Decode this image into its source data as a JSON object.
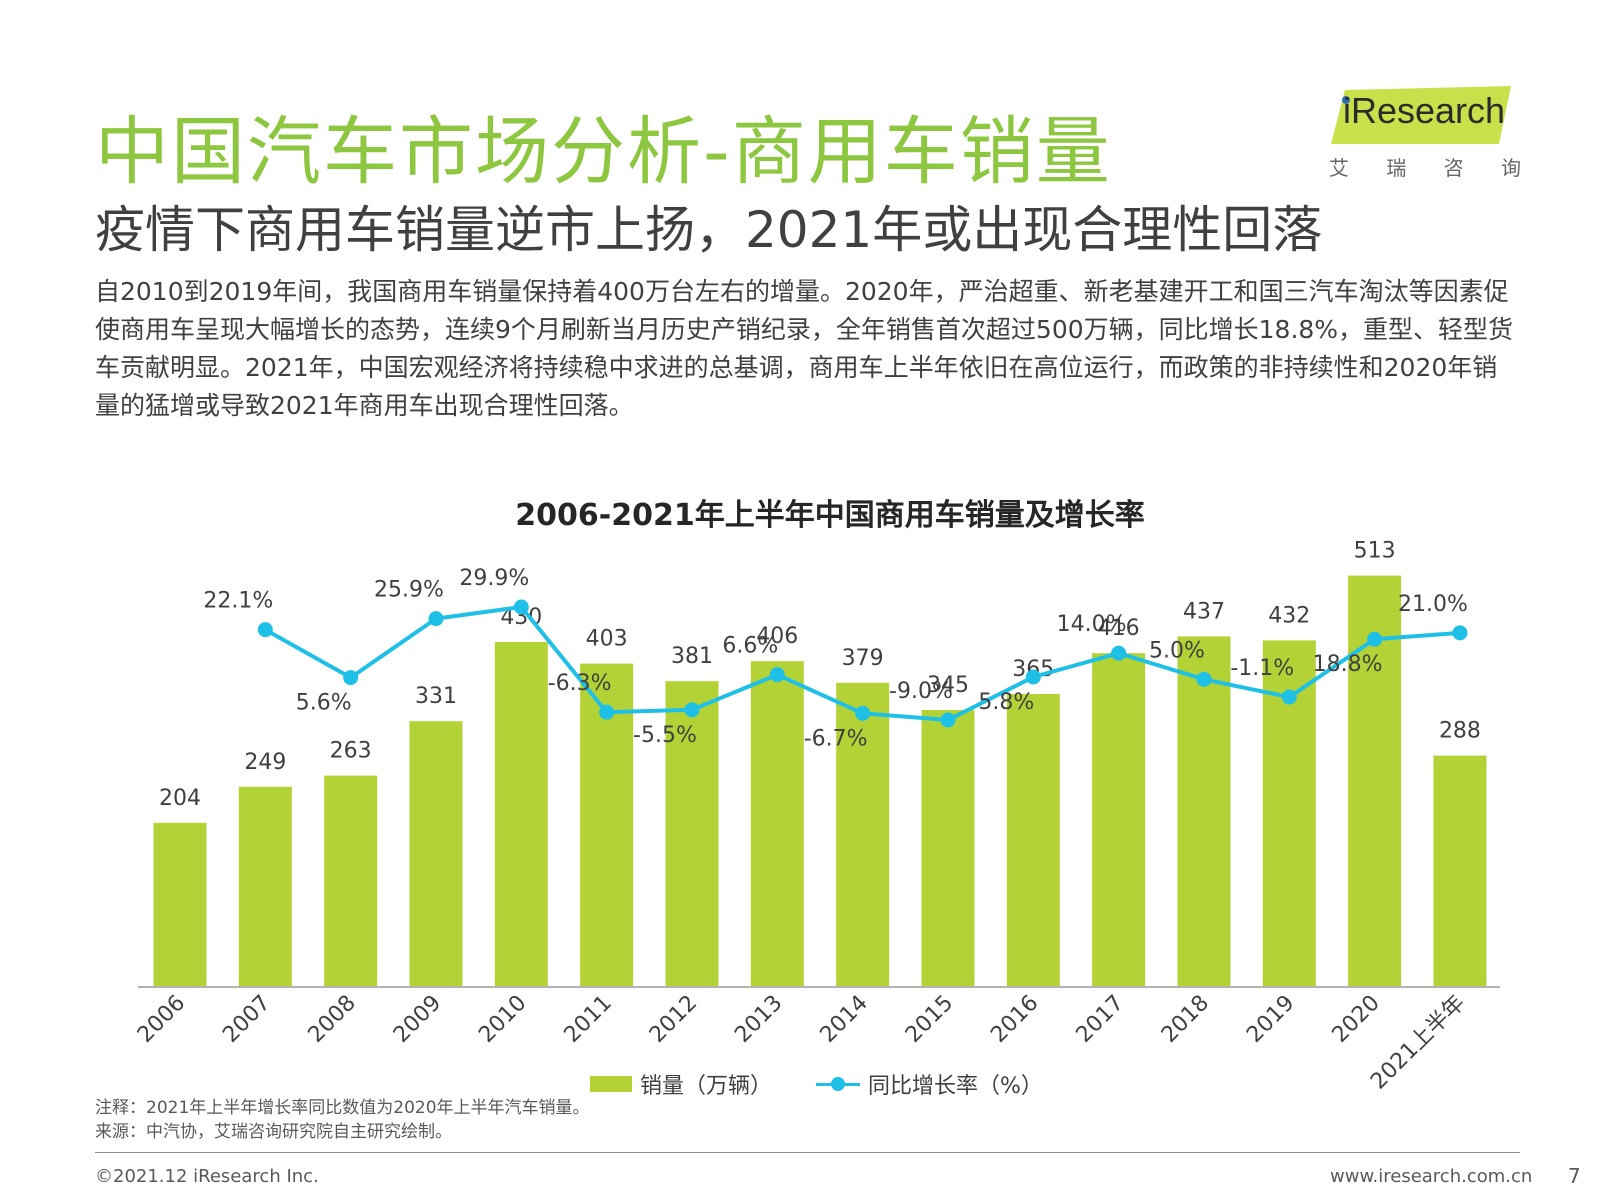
{
  "header": {
    "title": "中国汽车市场分析-商用车销量",
    "subtitle": "疫情下商用车销量逆市上扬，2021年或出现合理性回落",
    "intro": "自2010到2019年间，我国商用车销量保持着400万台左右的增量。2020年，严治超重、新老基建开工和国三汽车淘汰等因素促使商用车呈现大幅增长的态势，连续9个月刷新当月历史产销纪录，全年销售首次超过500万辆，同比增长18.8%，重型、轻型货车贡献明显。2021年，中国宏观经济将持续稳中求进的总基调，商用车上半年依旧在高位运行，而政策的非持续性和2020年销量的猛增或导致2021年商用车出现合理性回落。"
  },
  "logo": {
    "text": "iResearch",
    "sub": [
      "艾",
      "瑞",
      "咨",
      "询"
    ]
  },
  "chart_data": {
    "type": "bar",
    "title": "2006-2021年上半年中国商用车销量及增长率",
    "categories": [
      "2006",
      "2007",
      "2008",
      "2009",
      "2010",
      "2011",
      "2012",
      "2013",
      "2014",
      "2015",
      "2016",
      "2017",
      "2018",
      "2019",
      "2020",
      "2021上半年"
    ],
    "series": [
      {
        "name": "销量（万辆）",
        "kind": "bar",
        "color": "#b2d235",
        "values": [
          204,
          249,
          263,
          331,
          430,
          403,
          381,
          406,
          379,
          345,
          365,
          416,
          437,
          432,
          513,
          288
        ]
      },
      {
        "name": "同比增长率（%）",
        "kind": "line",
        "color": "#1ec0e8",
        "values": [
          null,
          22.1,
          5.6,
          25.9,
          29.9,
          -6.3,
          -5.5,
          6.6,
          -6.7,
          -9.0,
          5.8,
          14.0,
          5.0,
          -1.1,
          18.8,
          21.0
        ],
        "labels": [
          null,
          "22.1%",
          "5.6%",
          "25.9%",
          "29.9%",
          "-6.3%",
          "-5.5%",
          "6.6%",
          "-6.7%",
          "-9.0%",
          "5.8%",
          "14.0%",
          "5.0%",
          "-1.1%",
          "18.8%",
          "21.0%"
        ],
        "label_pos": [
          null,
          "above",
          "below",
          "above",
          "above",
          "above",
          "below",
          "above",
          "below",
          "above",
          "below",
          "above",
          "above",
          "above",
          "below",
          "above"
        ]
      }
    ],
    "bar_ylim": [
      0,
      600
    ],
    "line_ylim": [
      -20,
      35
    ],
    "legend_position": "bottom"
  },
  "notes": {
    "note": "注释：2021年上半年增长率同比数值为2020年上半年汽车销量。",
    "source": "来源：中汽协，艾瑞咨询研究院自主研究绘制。"
  },
  "footer": {
    "copyright": "©2021.12 iResearch Inc.",
    "website": "www.iresearch.com.cn",
    "page": "7"
  }
}
